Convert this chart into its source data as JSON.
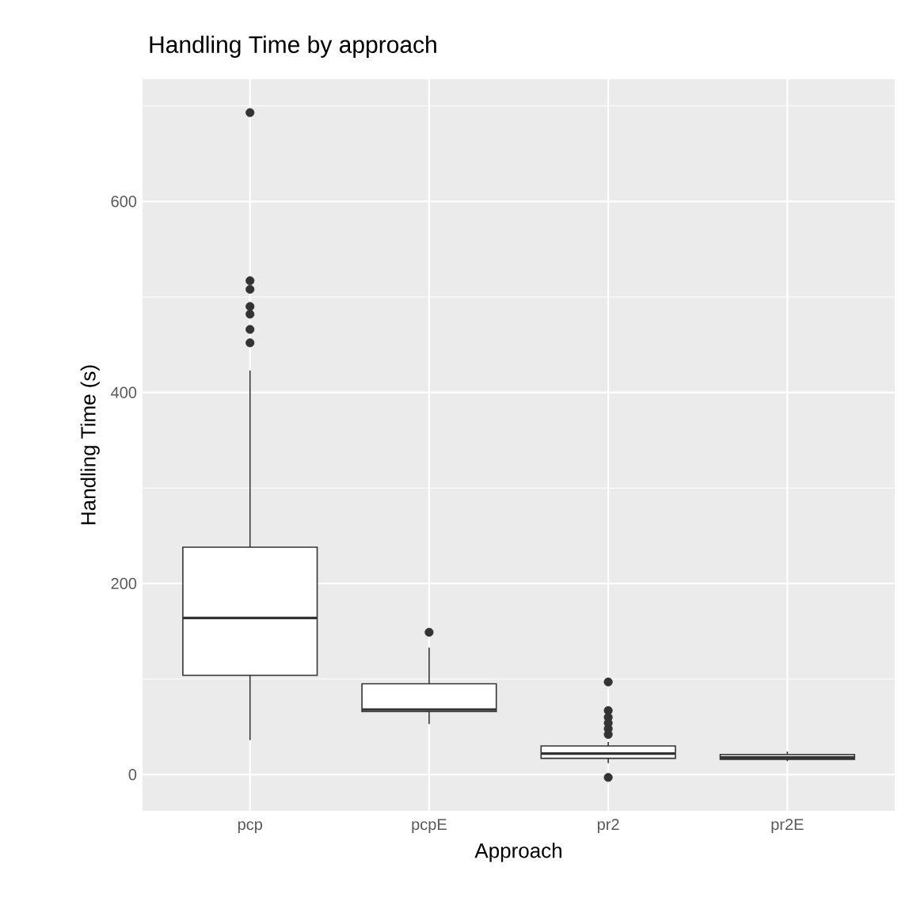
{
  "chart_data": {
    "type": "box",
    "title": "Handling Time by approach",
    "xlabel": "Approach",
    "ylabel": "Handling Time (s)",
    "categories": [
      "pcp",
      "pcpE",
      "pr2",
      "pr2E"
    ],
    "boxes": [
      {
        "low": 36,
        "q1": 104,
        "median": 164,
        "q3": 238,
        "high": 423,
        "outliers": [
          452,
          466,
          482,
          490,
          508,
          517,
          693
        ]
      },
      {
        "low": 53,
        "q1": 66,
        "median": 68,
        "q3": 95,
        "high": 133,
        "outliers": [
          149
        ]
      },
      {
        "low": 12,
        "q1": 17,
        "median": 22,
        "q3": 30,
        "high": 34,
        "outliers": [
          -3,
          42,
          48,
          54,
          60,
          67,
          97
        ]
      },
      {
        "low": 14,
        "q1": 16,
        "median": 18,
        "q3": 21,
        "high": 24
      }
    ],
    "ylim": [
      -38,
      728
    ],
    "yticks": [
      0,
      200,
      400,
      600
    ],
    "grid": true,
    "color": "#333333"
  }
}
